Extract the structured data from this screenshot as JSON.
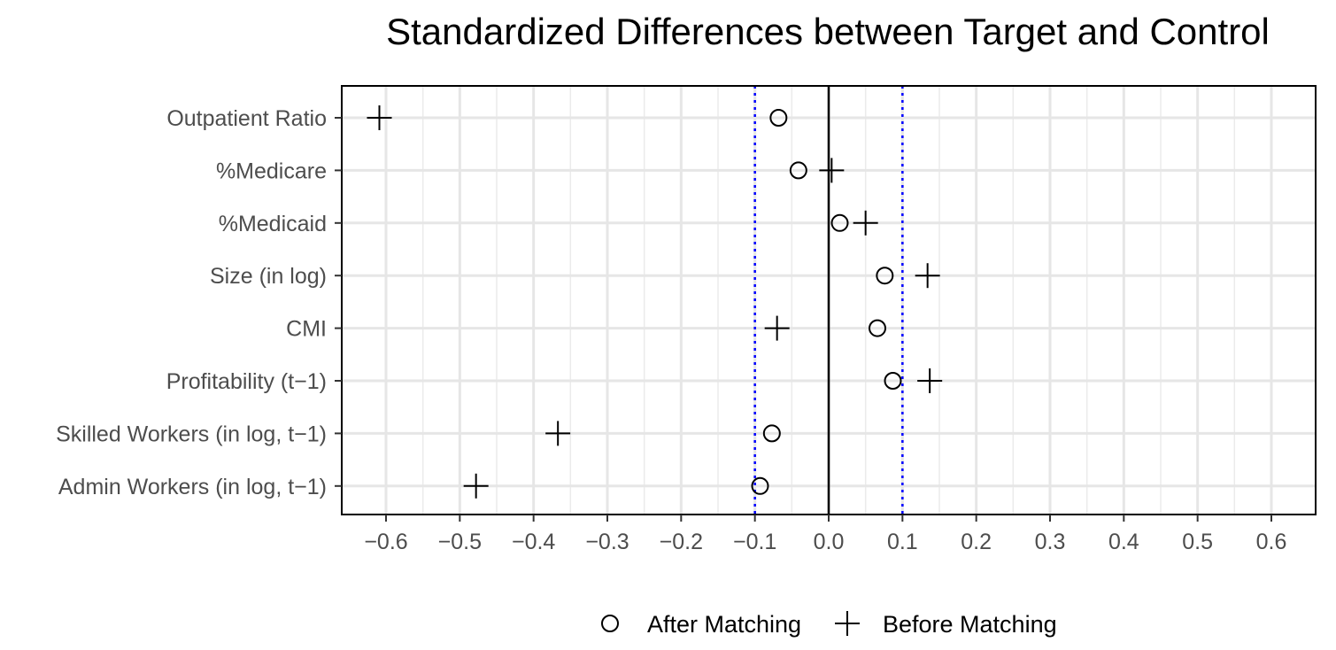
{
  "chart_data": {
    "type": "scatter",
    "title": "Standardized Differences between Target and Control",
    "xlabel": "",
    "ylabel": "",
    "xlim": [
      -0.66,
      0.66
    ],
    "x_ticks": [
      -0.6,
      -0.5,
      -0.4,
      -0.3,
      -0.2,
      -0.1,
      0.0,
      0.1,
      0.2,
      0.3,
      0.4,
      0.5,
      0.6
    ],
    "x_tick_labels": [
      "−0.6",
      "−0.5",
      "−0.4",
      "−0.3",
      "−0.2",
      "−0.1",
      "0.0",
      "0.1",
      "0.2",
      "0.3",
      "0.4",
      "0.5",
      "0.6"
    ],
    "categories": [
      "Outpatient Ratio",
      "%Medicare",
      "%Medicaid",
      "Size (in log)",
      "CMI",
      "Profitability (t−1)",
      "Skilled Workers (in log, t−1)",
      "Admin Workers (in log, t−1)"
    ],
    "series": [
      {
        "name": "After Matching",
        "marker": "circle",
        "values": [
          -0.068,
          -0.041,
          0.015,
          0.076,
          0.066,
          0.087,
          -0.077,
          -0.093
        ]
      },
      {
        "name": "Before Matching",
        "marker": "plus",
        "values": [
          -0.609,
          0.004,
          0.05,
          0.134,
          -0.07,
          0.137,
          -0.367,
          -0.478
        ]
      }
    ],
    "reference_lines": [
      {
        "x": 0.0,
        "style": "solid",
        "color": "#000000"
      },
      {
        "x": -0.1,
        "style": "dotted",
        "color": "#0000ff"
      },
      {
        "x": 0.1,
        "style": "dotted",
        "color": "#0000ff"
      }
    ],
    "grid": true,
    "legend_position": "bottom"
  }
}
